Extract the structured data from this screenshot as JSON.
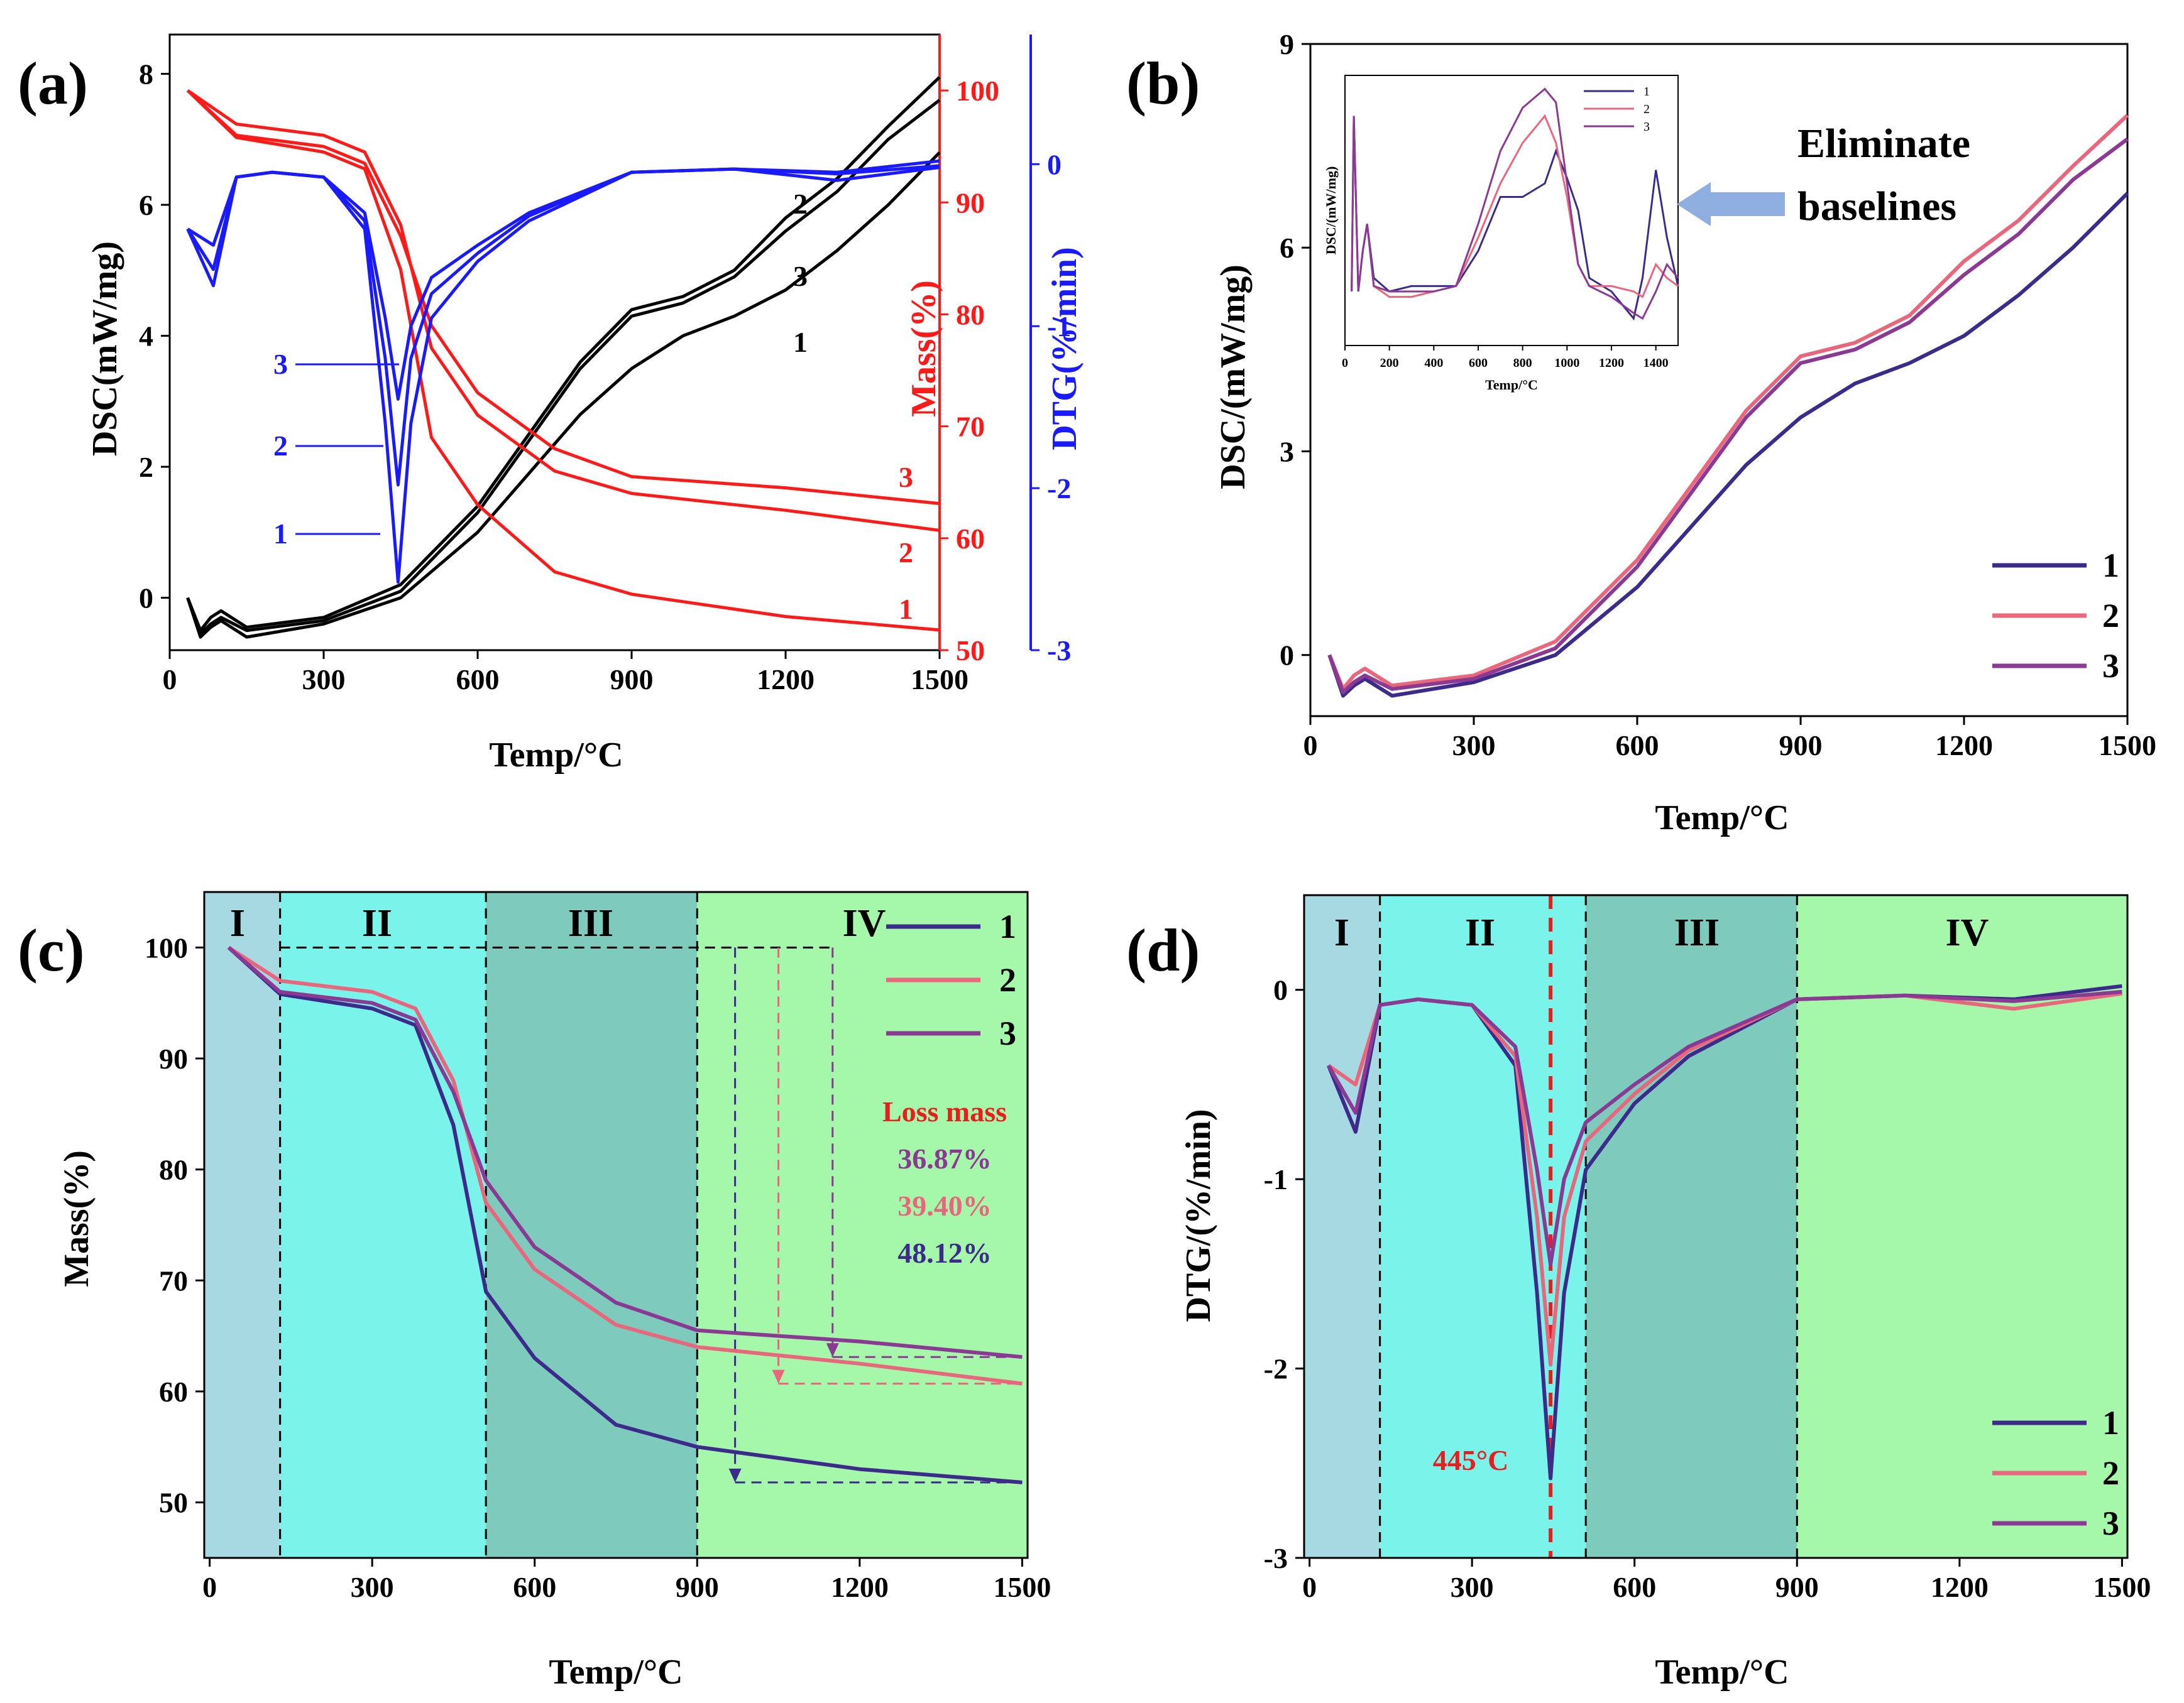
{
  "panels": {
    "a": {
      "label": "(a)",
      "xlabel": "Temp/°C",
      "ylabel_dsc": "DSC(mW/mg)",
      "ylabel_mass": "Mass(%)",
      "ylabel_dtg": "DTG(%/min)"
    },
    "b": {
      "label": "(b)",
      "xlabel": "Temp/°C",
      "ylabel": "DSC/(mW/mg)",
      "inset": {
        "ylabel": "DSC/(mW/mg)",
        "xlabel": "Temp/°C"
      },
      "annotation": [
        "Eliminate",
        "baselines"
      ]
    },
    "c": {
      "label": "(c)",
      "xlabel": "Temp/°C",
      "ylabel": "Mass(%)",
      "regions": [
        "I",
        "II",
        "III",
        "IV"
      ],
      "loss_title": "Loss mass",
      "losses": [
        "36.87%",
        "39.40%",
        "48.12%"
      ]
    },
    "d": {
      "label": "(d)",
      "xlabel": "Temp/°C",
      "ylabel": "DTG/(%/min)",
      "regions": [
        "I",
        "II",
        "III",
        "IV"
      ],
      "peak_label": "445°C"
    }
  },
  "series_names": [
    "1",
    "2",
    "3"
  ],
  "colors": {
    "s1": "#3d2b8c",
    "s2": "#e8677d",
    "s3": "#8a3a93",
    "dsc": "#000000",
    "mass": "#ff1a1a",
    "dtg": "#1a1aff",
    "region1": "#a6d9e2",
    "region2": "#7af3ea",
    "region3": "#7ecabd",
    "region4": "#a5f7a9"
  },
  "chart_data": [
    {
      "panel": "a",
      "type": "line",
      "title": "",
      "xlabel": "Temp/°C",
      "xlim": [
        0,
        1500
      ],
      "xticks": [
        0,
        300,
        600,
        900,
        1200,
        1500
      ],
      "y_axes": [
        {
          "name": "DSC(mW/mg)",
          "ylim": [
            -0.8,
            8.6
          ],
          "ticks": [
            0,
            2,
            4,
            6,
            8
          ]
        },
        {
          "name": "Mass(%)",
          "ylim": [
            50,
            105
          ],
          "ticks": [
            50,
            60,
            70,
            80,
            90,
            100
          ]
        },
        {
          "name": "DTG(%/min)",
          "ylim": [
            -3,
            0.8
          ],
          "ticks": [
            -3,
            -2,
            -1,
            0
          ]
        }
      ],
      "series": [
        {
          "name": "DSC 1",
          "axis": "DSC(mW/mg)",
          "x": [
            35,
            60,
            80,
            100,
            150,
            300,
            450,
            600,
            700,
            800,
            900,
            1000,
            1100,
            1200,
            1300,
            1400,
            1500
          ],
          "y": [
            0,
            -0.6,
            -0.45,
            -0.35,
            -0.6,
            -0.4,
            0,
            1.0,
            1.9,
            2.8,
            3.5,
            4.0,
            4.3,
            4.7,
            5.3,
            6.0,
            6.8
          ]
        },
        {
          "name": "DSC 2",
          "axis": "DSC(mW/mg)",
          "x": [
            35,
            60,
            80,
            100,
            150,
            300,
            450,
            600,
            700,
            800,
            900,
            1000,
            1100,
            1200,
            1300,
            1400,
            1500
          ],
          "y": [
            0,
            -0.5,
            -0.3,
            -0.2,
            -0.45,
            -0.3,
            0.2,
            1.4,
            2.5,
            3.6,
            4.4,
            4.6,
            5.0,
            5.8,
            6.4,
            7.2,
            7.95
          ]
        },
        {
          "name": "DSC 3",
          "axis": "DSC(mW/mg)",
          "x": [
            35,
            60,
            80,
            100,
            150,
            300,
            450,
            600,
            700,
            800,
            900,
            1000,
            1100,
            1200,
            1300,
            1400,
            1500
          ],
          "y": [
            0,
            -0.55,
            -0.4,
            -0.3,
            -0.5,
            -0.35,
            0.1,
            1.3,
            2.4,
            3.5,
            4.3,
            4.5,
            4.9,
            5.6,
            6.2,
            7.0,
            7.6
          ]
        },
        {
          "name": "Mass 1",
          "axis": "Mass(%)",
          "x": [
            35,
            130,
            300,
            380,
            450,
            510,
            600,
            750,
            900,
            1200,
            1500
          ],
          "y": [
            100,
            95.8,
            94.5,
            93,
            84,
            69,
            63,
            57,
            55,
            53,
            51.8
          ]
        },
        {
          "name": "Mass 2",
          "axis": "Mass(%)",
          "x": [
            35,
            130,
            300,
            380,
            450,
            510,
            600,
            750,
            900,
            1200,
            1500
          ],
          "y": [
            100,
            97,
            96,
            94.5,
            88,
            77,
            71,
            66,
            64,
            62.5,
            60.7
          ]
        },
        {
          "name": "Mass 3",
          "axis": "Mass(%)",
          "x": [
            35,
            130,
            300,
            380,
            450,
            510,
            600,
            750,
            900,
            1200,
            1500
          ],
          "y": [
            100,
            96,
            95,
            93.5,
            87,
            79,
            73,
            68,
            65.5,
            64.5,
            63.1
          ]
        },
        {
          "name": "DTG 1",
          "axis": "DTG(%/min)",
          "x": [
            35,
            85,
            130,
            200,
            300,
            380,
            420,
            445,
            470,
            510,
            600,
            700,
            900,
            1100,
            1300,
            1500
          ],
          "y": [
            -0.4,
            -0.75,
            -0.08,
            -0.05,
            -0.08,
            -0.4,
            -1.6,
            -2.58,
            -1.6,
            -0.95,
            -0.6,
            -0.35,
            -0.05,
            -0.03,
            -0.05,
            0.02
          ]
        },
        {
          "name": "DTG 2",
          "axis": "DTG(%/min)",
          "x": [
            35,
            85,
            130,
            200,
            300,
            380,
            420,
            445,
            470,
            510,
            600,
            700,
            900,
            1100,
            1300,
            1500
          ],
          "y": [
            -0.4,
            -0.5,
            -0.08,
            -0.05,
            -0.08,
            -0.35,
            -1.2,
            -1.98,
            -1.2,
            -0.8,
            -0.55,
            -0.32,
            -0.05,
            -0.03,
            -0.1,
            -0.02
          ]
        },
        {
          "name": "DTG 3",
          "axis": "DTG(%/min)",
          "x": [
            35,
            85,
            130,
            200,
            300,
            380,
            420,
            445,
            470,
            510,
            600,
            700,
            900,
            1100,
            1300,
            1500
          ],
          "y": [
            -0.4,
            -0.65,
            -0.08,
            -0.05,
            -0.08,
            -0.3,
            -0.95,
            -1.45,
            -1.0,
            -0.7,
            -0.5,
            -0.3,
            -0.05,
            -0.03,
            -0.06,
            -0.01
          ]
        }
      ],
      "annotations": [
        "1",
        "2",
        "3"
      ]
    },
    {
      "panel": "b",
      "type": "line",
      "title": "",
      "xlabel": "Temp/°C",
      "ylabel": "DSC/(mW/mg)",
      "xlim": [
        0,
        1500
      ],
      "ylim": [
        -0.9,
        9
      ],
      "xticks": [
        0,
        300,
        600,
        900,
        1200,
        1500
      ],
      "yticks": [
        0,
        3,
        6,
        9
      ],
      "legend": "bottom-right",
      "series": [
        {
          "name": "1",
          "x": [
            35,
            60,
            80,
            100,
            150,
            300,
            450,
            600,
            700,
            800,
            900,
            1000,
            1100,
            1200,
            1300,
            1400,
            1500
          ],
          "y": [
            0,
            -0.6,
            -0.45,
            -0.35,
            -0.6,
            -0.4,
            0,
            1.0,
            1.9,
            2.8,
            3.5,
            4.0,
            4.3,
            4.7,
            5.3,
            6.0,
            6.8
          ]
        },
        {
          "name": "2",
          "x": [
            35,
            60,
            80,
            100,
            150,
            300,
            450,
            600,
            700,
            800,
            900,
            1000,
            1100,
            1200,
            1300,
            1400,
            1500
          ],
          "y": [
            0,
            -0.5,
            -0.3,
            -0.2,
            -0.45,
            -0.3,
            0.2,
            1.4,
            2.5,
            3.6,
            4.4,
            4.6,
            5.0,
            5.8,
            6.4,
            7.2,
            7.95
          ]
        },
        {
          "name": "3",
          "x": [
            35,
            60,
            80,
            100,
            150,
            300,
            450,
            600,
            700,
            800,
            900,
            1000,
            1100,
            1200,
            1300,
            1400,
            1500
          ],
          "y": [
            0,
            -0.55,
            -0.4,
            -0.3,
            -0.5,
            -0.35,
            0.1,
            1.3,
            2.4,
            3.5,
            4.3,
            4.5,
            4.9,
            5.6,
            6.2,
            7.0,
            7.6
          ]
        }
      ],
      "inset": {
        "xlabel": "Temp/°C",
        "ylabel": "DSC/(mW/mg)",
        "xlim": [
          0,
          1500
        ],
        "xticks": [
          0,
          200,
          400,
          600,
          800,
          1000,
          1200,
          1400
        ],
        "series": [
          {
            "name": "1",
            "x": [
              30,
              40,
              60,
              80,
              100,
              130,
              200,
              300,
              400,
              500,
              600,
              700,
              800,
              900,
              950,
              1000,
              1050,
              1100,
              1200,
              1300,
              1340,
              1400,
              1450,
              1500
            ],
            "y": [
              0.2,
              0.85,
              0.2,
              0.35,
              0.45,
              0.25,
              0.2,
              0.22,
              0.22,
              0.22,
              0.35,
              0.55,
              0.55,
              0.6,
              0.72,
              0.62,
              0.5,
              0.25,
              0.2,
              0.1,
              0.25,
              0.65,
              0.4,
              0.22
            ]
          },
          {
            "name": "2",
            "x": [
              30,
              40,
              60,
              80,
              100,
              130,
              200,
              300,
              400,
              500,
              600,
              700,
              800,
              900,
              950,
              1000,
              1050,
              1100,
              1200,
              1300,
              1340,
              1400,
              1450,
              1500
            ],
            "y": [
              0.2,
              0.85,
              0.2,
              0.35,
              0.45,
              0.22,
              0.18,
              0.18,
              0.2,
              0.22,
              0.4,
              0.6,
              0.75,
              0.85,
              0.75,
              0.55,
              0.3,
              0.22,
              0.22,
              0.2,
              0.18,
              0.3,
              0.25,
              0.22
            ]
          },
          {
            "name": "3",
            "x": [
              30,
              40,
              60,
              80,
              100,
              130,
              200,
              300,
              400,
              500,
              600,
              700,
              800,
              900,
              950,
              1000,
              1050,
              1100,
              1200,
              1300,
              1340,
              1400,
              1450,
              1500
            ],
            "y": [
              0.2,
              0.85,
              0.2,
              0.35,
              0.45,
              0.22,
              0.2,
              0.2,
              0.2,
              0.22,
              0.45,
              0.72,
              0.88,
              0.95,
              0.9,
              0.6,
              0.3,
              0.22,
              0.18,
              0.12,
              0.1,
              0.2,
              0.3,
              0.25
            ]
          }
        ]
      }
    },
    {
      "panel": "c",
      "type": "line",
      "title": "",
      "xlabel": "Temp/°C",
      "ylabel": "Mass(%)",
      "xlim": [
        -10,
        1510
      ],
      "ylim": [
        45,
        105
      ],
      "xticks": [
        0,
        300,
        600,
        900,
        1200,
        1500
      ],
      "yticks": [
        50,
        60,
        70,
        80,
        90,
        100
      ],
      "regions": [
        {
          "label": "I",
          "from": -10,
          "to": 130
        },
        {
          "label": "II",
          "from": 130,
          "to": 510
        },
        {
          "label": "III",
          "from": 510,
          "to": 900
        },
        {
          "label": "IV",
          "from": 900,
          "to": 1510
        }
      ],
      "legend": "top-right",
      "series": [
        {
          "name": "1",
          "x": [
            35,
            130,
            300,
            380,
            450,
            510,
            600,
            750,
            900,
            1200,
            1500
          ],
          "y": [
            100,
            95.8,
            94.5,
            93,
            84,
            69,
            63,
            57,
            55,
            53,
            51.8
          ]
        },
        {
          "name": "2",
          "x": [
            35,
            130,
            300,
            380,
            450,
            510,
            600,
            750,
            900,
            1200,
            1500
          ],
          "y": [
            100,
            97,
            96,
            94.5,
            88,
            77,
            71,
            66,
            64,
            62.5,
            60.7
          ]
        },
        {
          "name": "3",
          "x": [
            35,
            130,
            300,
            380,
            450,
            510,
            600,
            750,
            900,
            1200,
            1500
          ],
          "y": [
            100,
            96,
            95,
            93.5,
            87,
            79,
            73,
            68,
            65.5,
            64.5,
            63.1
          ]
        }
      ],
      "annotations": [
        {
          "text": "Loss mass"
        },
        {
          "series": "3",
          "text": "36.87%"
        },
        {
          "series": "2",
          "text": "39.40%"
        },
        {
          "series": "1",
          "text": "48.12%"
        }
      ]
    },
    {
      "panel": "d",
      "type": "line",
      "title": "",
      "xlabel": "Temp/°C",
      "ylabel": "DTG/(%/min)",
      "xlim": [
        -10,
        1510
      ],
      "ylim": [
        -3,
        0.5
      ],
      "xticks": [
        0,
        300,
        600,
        900,
        1200,
        1500
      ],
      "yticks": [
        -3,
        -2,
        -1,
        0
      ],
      "regions": [
        {
          "label": "I",
          "from": -10,
          "to": 130
        },
        {
          "label": "II",
          "from": 130,
          "to": 510
        },
        {
          "label": "III",
          "from": 510,
          "to": 900
        },
        {
          "label": "IV",
          "from": 900,
          "to": 1510
        }
      ],
      "legend": "bottom-right",
      "peak_x": 445,
      "series": [
        {
          "name": "1",
          "x": [
            35,
            85,
            130,
            200,
            300,
            380,
            420,
            445,
            470,
            510,
            600,
            700,
            900,
            1100,
            1300,
            1500
          ],
          "y": [
            -0.4,
            -0.75,
            -0.08,
            -0.05,
            -0.08,
            -0.4,
            -1.6,
            -2.58,
            -1.6,
            -0.95,
            -0.6,
            -0.35,
            -0.05,
            -0.03,
            -0.05,
            0.02
          ]
        },
        {
          "name": "2",
          "x": [
            35,
            85,
            130,
            200,
            300,
            380,
            420,
            445,
            470,
            510,
            600,
            700,
            900,
            1100,
            1300,
            1500
          ],
          "y": [
            -0.4,
            -0.5,
            -0.08,
            -0.05,
            -0.08,
            -0.35,
            -1.2,
            -1.98,
            -1.2,
            -0.8,
            -0.55,
            -0.32,
            -0.05,
            -0.03,
            -0.1,
            -0.02
          ]
        },
        {
          "name": "3",
          "x": [
            35,
            85,
            130,
            200,
            300,
            380,
            420,
            445,
            470,
            510,
            600,
            700,
            900,
            1100,
            1300,
            1500
          ],
          "y": [
            -0.4,
            -0.65,
            -0.08,
            -0.05,
            -0.08,
            -0.3,
            -0.95,
            -1.45,
            -1.0,
            -0.7,
            -0.5,
            -0.3,
            -0.05,
            -0.03,
            -0.06,
            -0.01
          ]
        }
      ]
    }
  ]
}
